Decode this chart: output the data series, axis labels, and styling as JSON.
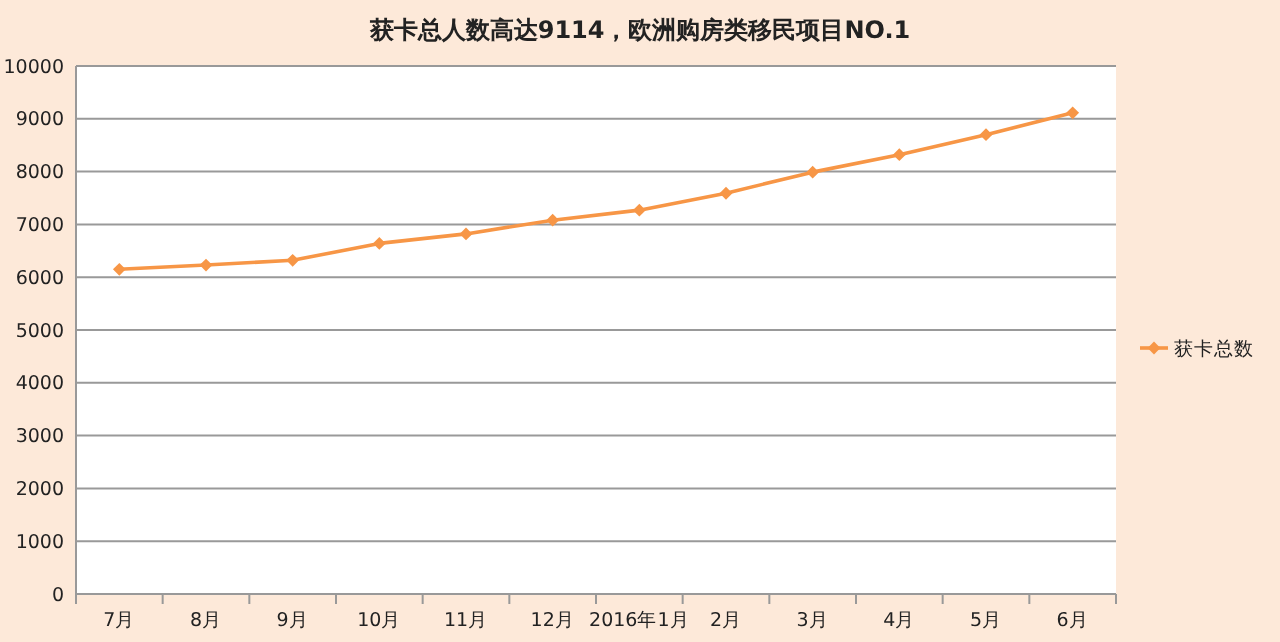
{
  "chart_data": {
    "type": "line",
    "title": "获卡总人数高达9114，欧洲购房类移民项目NO.1",
    "categories": [
      "7月",
      "8月",
      "9月",
      "10月",
      "11月",
      "12月",
      "2016年1月",
      "2月",
      "3月",
      "4月",
      "5月",
      "6月"
    ],
    "series": [
      {
        "name": "获卡总数",
        "color": "#f79646",
        "values": [
          6150,
          6230,
          6320,
          6640,
          6820,
          7080,
          7270,
          7590,
          7990,
          8320,
          8700,
          9114
        ]
      }
    ],
    "ylim": [
      0,
      10000
    ],
    "yticks": [
      0,
      1000,
      2000,
      3000,
      4000,
      5000,
      6000,
      7000,
      8000,
      9000,
      10000
    ],
    "grid": "y",
    "legend": "right",
    "marker": "diamond",
    "line_style": "solid"
  }
}
